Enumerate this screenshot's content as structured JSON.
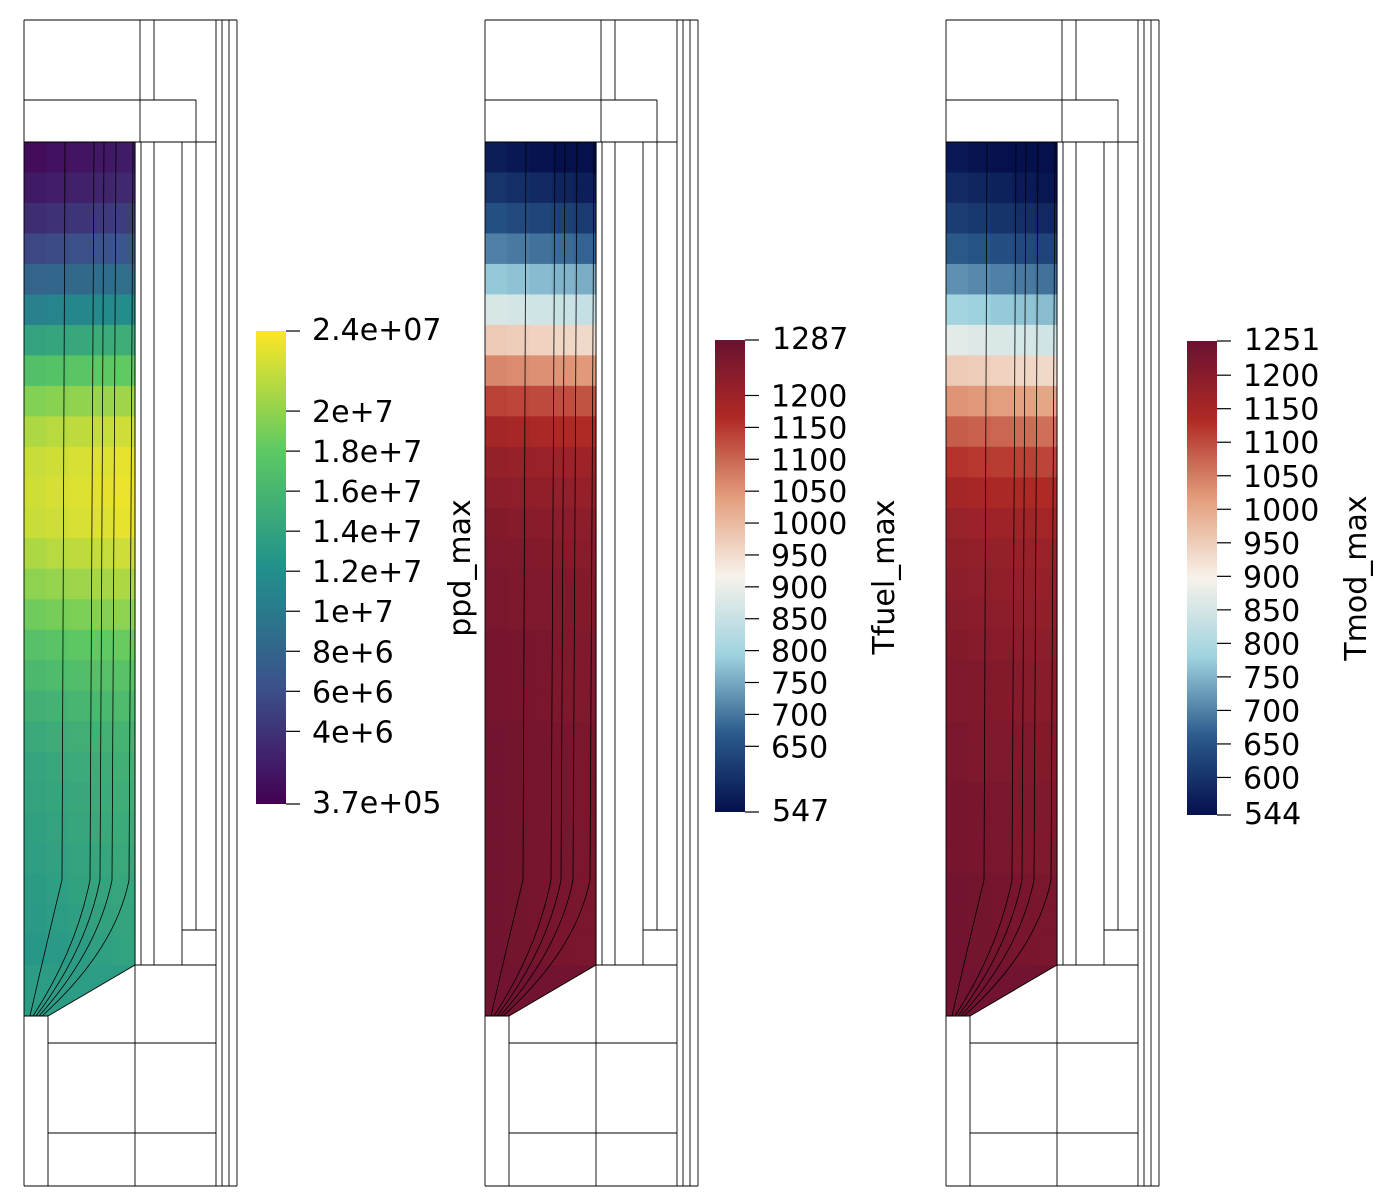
{
  "panels": [
    {
      "id": "ppd",
      "scalar_bar": {
        "title": "ppd_max",
        "min_label": "3.7e+05",
        "max_label": "2.4e+07",
        "min_value": 370000,
        "max_value": 24000000,
        "tick_labels": [
          "2e+7",
          "1.8e+7",
          "1.6e+7",
          "1.4e+7",
          "1.2e+7",
          "1e+7",
          "8e+6",
          "6e+6",
          "4e+6"
        ],
        "tick_values": [
          20000000,
          18000000,
          16000000,
          14000000,
          12000000,
          10000000,
          8000000,
          6000000,
          4000000
        ],
        "colormap": "viridis",
        "colors": [
          "#440154",
          "#3b528b",
          "#21918c",
          "#5ec962",
          "#fde725"
        ]
      },
      "field_profile": [
        0.06,
        0.1,
        0.16,
        0.24,
        0.34,
        0.46,
        0.6,
        0.73,
        0.83,
        0.9,
        0.94,
        0.95,
        0.94,
        0.9,
        0.85,
        0.8,
        0.74,
        0.7,
        0.66,
        0.63,
        0.61,
        0.6,
        0.59,
        0.58,
        0.57,
        0.56,
        0.55
      ]
    },
    {
      "id": "tfuel",
      "scalar_bar": {
        "title": "Tfuel_max",
        "min_label": "547",
        "max_label": "1287",
        "min_value": 547,
        "max_value": 1287,
        "tick_labels": [
          "1200",
          "1150",
          "1100",
          "1050",
          "1000",
          "950",
          "900",
          "850",
          "800",
          "750",
          "700",
          "650"
        ],
        "tick_values": [
          1200,
          1150,
          1100,
          1050,
          1000,
          950,
          900,
          850,
          800,
          750,
          700,
          650
        ],
        "colormap": "blue-white-red",
        "colors": [
          "#05104d",
          "#2a5b8c",
          "#9fd3df",
          "#f7f2ea",
          "#e39e7c",
          "#b02a25",
          "#6a1130"
        ]
      },
      "field_profile": [
        0.03,
        0.08,
        0.14,
        0.22,
        0.32,
        0.44,
        0.58,
        0.7,
        0.8,
        0.86,
        0.9,
        0.92,
        0.94,
        0.95,
        0.96,
        0.96,
        0.97,
        0.97,
        0.97,
        0.98,
        0.98,
        0.98,
        0.98,
        0.98,
        0.98,
        0.98,
        0.98
      ]
    },
    {
      "id": "tmod",
      "scalar_bar": {
        "title": "Tmod_max",
        "min_label": "544",
        "max_label": "1251",
        "min_value": 544,
        "max_value": 1251,
        "tick_labels": [
          "1200",
          "1150",
          "1100",
          "1050",
          "1000",
          "950",
          "900",
          "850",
          "800",
          "750",
          "700",
          "650",
          "600"
        ],
        "tick_values": [
          1200,
          1150,
          1100,
          1050,
          1000,
          950,
          900,
          850,
          800,
          750,
          700,
          650,
          600
        ],
        "colormap": "blue-white-red",
        "colors": [
          "#05104d",
          "#2a5b8c",
          "#9fd3df",
          "#f7f2ea",
          "#e39e7c",
          "#b02a25",
          "#6a1130"
        ]
      },
      "field_profile": [
        0.02,
        0.06,
        0.1,
        0.16,
        0.24,
        0.34,
        0.46,
        0.58,
        0.68,
        0.76,
        0.82,
        0.86,
        0.89,
        0.91,
        0.92,
        0.93,
        0.94,
        0.95,
        0.95,
        0.96,
        0.96,
        0.97,
        0.97,
        0.97,
        0.98,
        0.98,
        0.98
      ]
    }
  ]
}
